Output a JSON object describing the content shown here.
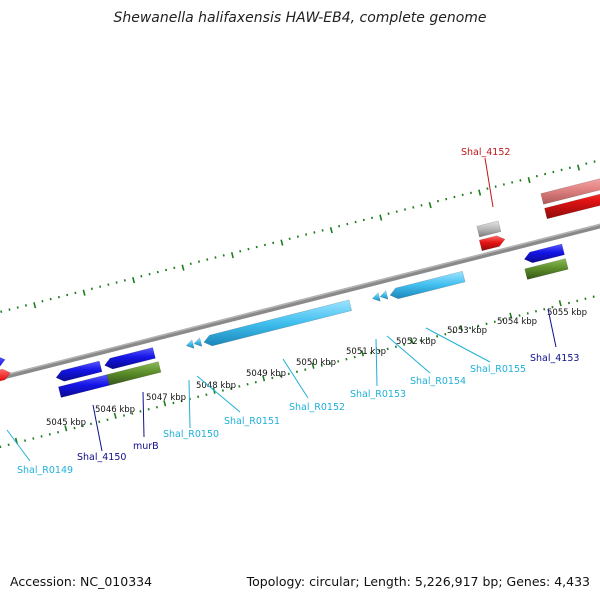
{
  "title": "Shewanella halifaxensis HAW-EB4, complete genome",
  "footer": {
    "accession": "Accession: NC_010334",
    "topology": "Topology: circular; Length: 5,226,917 bp; Genes: 4,433"
  },
  "colors": {
    "backbone": "#808080",
    "tick": "#1e7d1e",
    "blue_gene": "#1414e6",
    "red_gene": "#e61414",
    "pink_gene": "#e88a8a",
    "gray_gene": "#b8b8b8",
    "olive_gene": "#5a8a28",
    "cyan_rna": "#40bfef",
    "label_cyan": "#20b0d8",
    "label_navy": "#10108a",
    "label_red": "#c01818"
  },
  "kbp_labels": [
    "5045 kbp",
    "5046 kbp",
    "5047 kbp",
    "5048 kbp",
    "5049 kbp",
    "5050 kbp",
    "5051 kbp",
    "5052 kbp",
    "5053 kbp",
    "5054 kbp",
    "5055 kbp"
  ],
  "gene_labels": [
    {
      "text": "Shal_R0149",
      "color": "label_cyan"
    },
    {
      "text": "Shal_4150",
      "color": "label_navy"
    },
    {
      "text": "murB",
      "color": "label_navy"
    },
    {
      "text": "Shal_R0150",
      "color": "label_cyan"
    },
    {
      "text": "Shal_R0151",
      "color": "label_cyan"
    },
    {
      "text": "Shal_R0152",
      "color": "label_cyan"
    },
    {
      "text": "Shal_R0153",
      "color": "label_cyan"
    },
    {
      "text": "Shal_R0154",
      "color": "label_cyan"
    },
    {
      "text": "Shal_R0155",
      "color": "label_cyan"
    },
    {
      "text": "Shal_4153",
      "color": "label_navy"
    },
    {
      "text": "Shal_4152",
      "color": "label_red"
    }
  ]
}
